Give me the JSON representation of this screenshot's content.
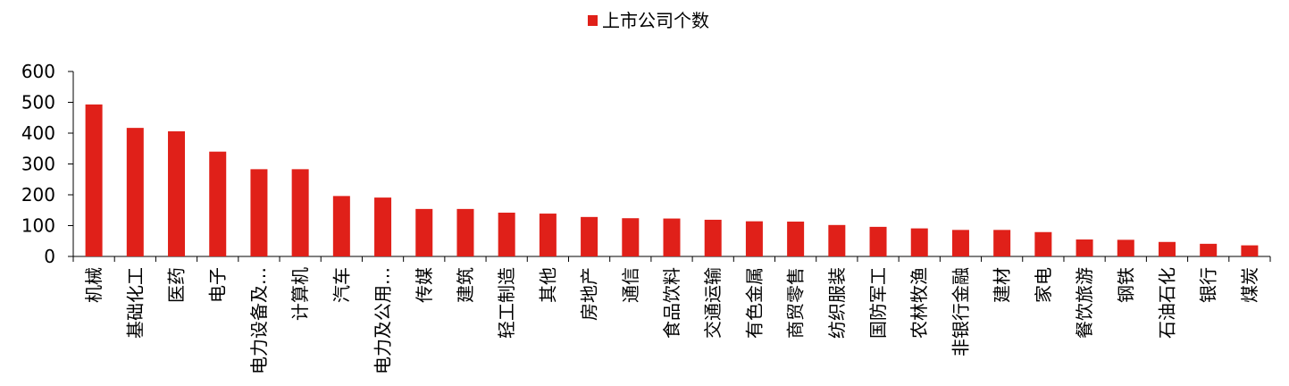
{
  "chart_data": {
    "type": "bar",
    "legend_position": "top-center",
    "grid": false,
    "ylim": [
      0,
      600
    ],
    "yticks": [
      0,
      100,
      200,
      300,
      400,
      500,
      600
    ],
    "series": [
      {
        "name": "上市公司个数",
        "color": "#e02019",
        "values": [
          493,
          417,
          406,
          340,
          283,
          283,
          196,
          191,
          154,
          154,
          142,
          139,
          128,
          124,
          123,
          119,
          114,
          113,
          102,
          96,
          91,
          86,
          86,
          79,
          55,
          54,
          47,
          41,
          36
        ]
      }
    ],
    "categories": [
      "机械",
      "基础化工",
      "医药",
      "电子",
      "电力设备及…",
      "计算机",
      "汽车",
      "电力及公用…",
      "传媒",
      "建筑",
      "轻工制造",
      "其他",
      "房地产",
      "通信",
      "食品饮料",
      "交通运输",
      "有色金属",
      "商贸零售",
      "纺织服装",
      "国防军工",
      "农林牧渔",
      "非银行金融",
      "建材",
      "家电",
      "餐饮旅游",
      "钢铁",
      "石油石化",
      "银行",
      "煤炭"
    ]
  }
}
